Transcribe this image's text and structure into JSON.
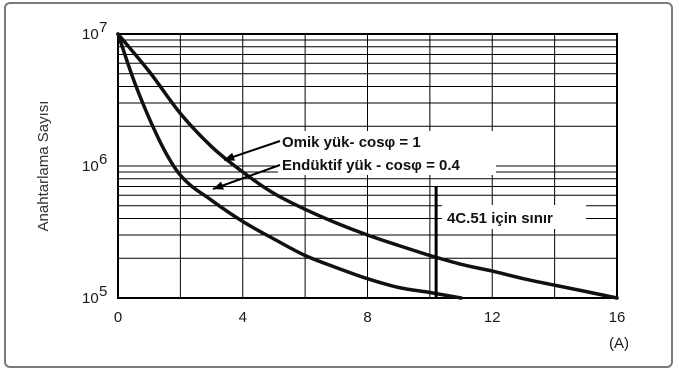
{
  "chart_data": {
    "type": "line",
    "ylabel": "Anahtarlama Sayısı",
    "xunit": "(A)",
    "xlim": [
      0,
      16
    ],
    "ylim": [
      100000,
      10000000
    ],
    "yscale": "log",
    "grid": true,
    "x_ticks": [
      "0",
      "4",
      "8",
      "12",
      "16"
    ],
    "y_ticks": [
      {
        "base": "10",
        "exp": "7"
      },
      {
        "base": "10",
        "exp": "6"
      },
      {
        "base": "10",
        "exp": "5"
      }
    ],
    "series": [
      {
        "name": "Omik yük- cosφ = 1",
        "x": [
          0,
          1,
          2,
          3,
          4,
          5,
          6,
          7,
          8,
          9,
          10,
          11,
          12,
          13,
          14,
          15,
          16
        ],
        "y": [
          10000000,
          5200000,
          2500000,
          1400000,
          900000,
          620000,
          470000,
          370000,
          300000,
          250000,
          210000,
          180000,
          160000,
          140000,
          125000,
          112000,
          100000
        ]
      },
      {
        "name": "Endüktif yük - cosφ = 0.4",
        "x": [
          0,
          0.5,
          1,
          1.5,
          2,
          3,
          4,
          5,
          6,
          7,
          8,
          9,
          10,
          11
        ],
        "y": [
          10000000,
          4500000,
          2300000,
          1300000,
          850000,
          550000,
          380000,
          280000,
          210000,
          170000,
          140000,
          120000,
          110000,
          100000
        ]
      }
    ],
    "limit_line": {
      "x": 10.2,
      "y_top": 700000,
      "label": "4C.51 için sınır"
    }
  }
}
